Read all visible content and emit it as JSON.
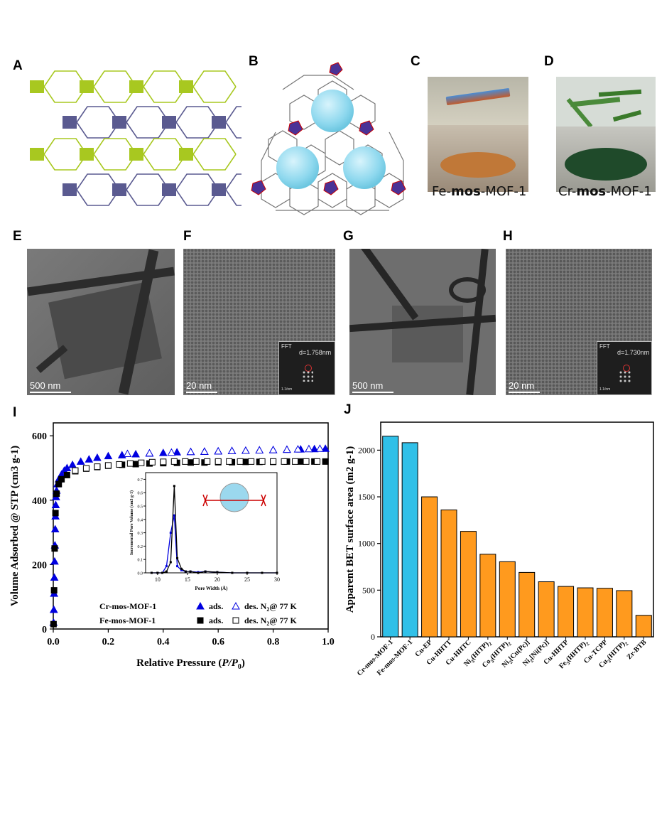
{
  "panels": {
    "A": "A",
    "B": "B",
    "C": "C",
    "D": "D",
    "E": "E",
    "F": "F",
    "G": "G",
    "H": "H",
    "I": "I",
    "J": "J"
  },
  "captions": {
    "fe_prefix": "Fe-",
    "fe_bold": "mos",
    "fe_suffix": "-MOF-1",
    "cr_prefix": "Cr-",
    "cr_bold": "mos",
    "cr_suffix": "-MOF-1"
  },
  "tem": {
    "E_scale": "500 nm",
    "F_scale": "20 nm",
    "F_fft_label": "FFT",
    "F_fft_d": "d=1.758nm",
    "F_fft_scale": "1.1/nm",
    "G_scale": "500 nm",
    "H_scale": "20 nm",
    "H_fft_label": "FFT",
    "H_fft_d": "d=1.730nm",
    "H_fft_scale": "1.1/nm"
  },
  "colors": {
    "green": "#a8c820",
    "purple": "#5a5a90",
    "cyan": "#30c0e8",
    "orange": "#ff9a1e",
    "blue": "#0000e0",
    "black": "#000000"
  },
  "chart_data": [
    {
      "type": "scatter",
      "panel": "I",
      "xlabel_main": "Relative Pressure (",
      "xlabel_italic": "P/P",
      "xlabel_sub": "0",
      "xlabel_end": ")",
      "ylabel": "Volume Adsorbed @ STP (cm3 g-1)",
      "xlim": [
        0,
        1.0
      ],
      "ylim": [
        0,
        640
      ],
      "xticks": [
        "0.0",
        "0.2",
        "0.4",
        "0.6",
        "0.8",
        "1.0"
      ],
      "yticks": [
        "0",
        "200",
        "400",
        "600"
      ],
      "legend": {
        "cr_name": "Cr-mos-MOF-1",
        "fe_name": "Fe-mos-MOF-1",
        "ads": "ads.",
        "des": "des. N",
        "des_sub": "2",
        "des_end": "@ 77 K"
      },
      "series": [
        {
          "name": "Cr-mos-MOF-1 ads.",
          "marker": "filled-triangle",
          "color": "#0000e0",
          "x": [
            0.001,
            0.002,
            0.003,
            0.004,
            0.005,
            0.006,
            0.007,
            0.008,
            0.009,
            0.01,
            0.012,
            0.015,
            0.02,
            0.03,
            0.04,
            0.05,
            0.07,
            0.1,
            0.13,
            0.16,
            0.2,
            0.25,
            0.3,
            0.35,
            0.4,
            0.45,
            0.5,
            0.55,
            0.6,
            0.65,
            0.7,
            0.75,
            0.8,
            0.85,
            0.9,
            0.95,
            0.99
          ],
          "y": [
            20,
            60,
            110,
            160,
            210,
            260,
            310,
            350,
            385,
            410,
            430,
            450,
            465,
            480,
            492,
            500,
            510,
            520,
            527,
            532,
            537,
            540,
            543,
            545,
            547,
            549,
            550,
            551,
            552,
            553,
            554,
            555,
            556,
            557,
            558,
            559,
            560
          ]
        },
        {
          "name": "Cr-mos-MOF-1 des. N2@ 77 K",
          "marker": "open-triangle",
          "color": "#0000e0",
          "x": [
            0.97,
            0.93,
            0.89,
            0.85,
            0.8,
            0.75,
            0.7,
            0.65,
            0.6,
            0.55,
            0.5,
            0.43,
            0.35,
            0.27
          ],
          "y": [
            560,
            559,
            558,
            557,
            556,
            555,
            554,
            553,
            552,
            551,
            550,
            548,
            546,
            544
          ]
        },
        {
          "name": "Fe-mos-MOF-1 ads.",
          "marker": "filled-square",
          "color": "#000000",
          "x": [
            0.001,
            0.003,
            0.005,
            0.008,
            0.012,
            0.02,
            0.03,
            0.05,
            0.08,
            0.12,
            0.16,
            0.2,
            0.25,
            0.3,
            0.35,
            0.4,
            0.45,
            0.5,
            0.55,
            0.6,
            0.65,
            0.7,
            0.75,
            0.8,
            0.85,
            0.9,
            0.95,
            0.99
          ],
          "y": [
            15,
            120,
            250,
            360,
            420,
            450,
            465,
            478,
            490,
            498,
            503,
            507,
            510,
            512,
            514,
            515,
            516,
            517,
            517,
            518,
            518,
            519,
            519,
            519,
            520,
            520,
            520,
            520
          ]
        },
        {
          "name": "Fe-mos-MOF-1 des. N2@ 77 K",
          "marker": "open-square",
          "color": "#000000",
          "x": [
            0.96,
            0.92,
            0.88,
            0.84,
            0.8,
            0.76,
            0.72,
            0.68,
            0.64,
            0.6,
            0.56,
            0.52,
            0.48,
            0.44,
            0.4,
            0.36,
            0.32,
            0.28,
            0.24,
            0.2,
            0.16,
            0.12,
            0.08
          ],
          "y": [
            520,
            520,
            520,
            520,
            520,
            520,
            520,
            520,
            520,
            520,
            520,
            520,
            520,
            520,
            519,
            518,
            516,
            514,
            511,
            508,
            504,
            499,
            492
          ]
        }
      ],
      "inset": {
        "type": "line",
        "xlabel": "Pore Width (Å)",
        "ylabel": "Incremental Pore Volume (cm3 g-1)",
        "xlim": [
          8,
          30
        ],
        "ylim": [
          0,
          0.75
        ],
        "xticks": [
          "10",
          "15",
          "20",
          "25",
          "30"
        ],
        "yticks": [
          "0.0",
          "0.1",
          "0.2",
          "0.3",
          "0.4",
          "0.5",
          "0.6",
          "0.7"
        ],
        "series": [
          {
            "name": "Cr",
            "color": "#0000e0",
            "x": [
              9.0,
              10.0,
              10.8,
              11.5,
              12.2,
              12.8,
              13.3,
              14.0,
              14.7,
              15.5,
              16.8,
              18.0,
              20.0,
              22.5,
              25.0,
              27.5,
              30.0
            ],
            "y": [
              0.0,
              0.0,
              0.0,
              0.05,
              0.3,
              0.43,
              0.05,
              0.02,
              0.01,
              0.01,
              0.005,
              0.01,
              0.005,
              0.0,
              0.0,
              0.0,
              0.0
            ]
          },
          {
            "name": "Fe",
            "color": "#000000",
            "x": [
              9.0,
              10.0,
              10.8,
              11.5,
              12.2,
              12.8,
              13.3,
              14.0,
              14.7,
              15.5,
              16.8,
              18.0,
              20.0,
              22.5,
              25.0,
              27.5,
              30.0
            ],
            "y": [
              0.0,
              0.0,
              0.0,
              0.01,
              0.08,
              0.65,
              0.11,
              0.03,
              0.01,
              0.01,
              0.0,
              0.01,
              0.005,
              0.0,
              0.0,
              0.0,
              0.0
            ]
          }
        ]
      }
    },
    {
      "type": "bar",
      "panel": "J",
      "ylabel": "Apparent BET surface area (m2 g-1)",
      "ylim": [
        0,
        2300
      ],
      "yticks": [
        "0",
        "500",
        "1000",
        "1500",
        "2000"
      ],
      "categories": [
        {
          "label": "Cr-mos-MOF-1",
          "base": "Cr-mos-MOF-1",
          "parts": []
        },
        {
          "label": "Fe-mos-MOF-1",
          "base": "Fe-mos-MOF-1",
          "parts": []
        },
        {
          "label": "Cu-EP",
          "base": "Cu-EP",
          "parts": []
        },
        {
          "label": "Cu-HHTT",
          "base": "Cu-HHTT",
          "parts": []
        },
        {
          "label": "Cu-HHTC",
          "base": "Cu-HHTC",
          "parts": []
        },
        {
          "label": "Ni3(HITP)2",
          "base": "Ni",
          "parts": [
            [
              "3",
              "sub"
            ],
            [
              "(HITP)",
              ""
            ],
            [
              "2",
              "sub"
            ]
          ]
        },
        {
          "label": "Co3(HITP)2",
          "base": "Co",
          "parts": [
            [
              "3",
              "sub"
            ],
            [
              "(HITP)",
              ""
            ],
            [
              "2",
              "sub"
            ]
          ]
        },
        {
          "label": "Ni2[Cu(Pc)]",
          "base": "Ni",
          "parts": [
            [
              "2",
              "sub"
            ],
            [
              "[Cu(Pc)]",
              ""
            ]
          ]
        },
        {
          "label": "Ni2[Ni(Pc)]",
          "base": "Ni",
          "parts": [
            [
              "2",
              "sub"
            ],
            [
              "[Ni(Pc)]",
              ""
            ]
          ]
        },
        {
          "label": "Cu-HHTP",
          "base": "Cu-HHTP",
          "parts": []
        },
        {
          "label": "Fe3(HHTP)2",
          "base": "Fe",
          "parts": [
            [
              "3",
              "sub"
            ],
            [
              "(HHTP)",
              ""
            ],
            [
              "2",
              "sub"
            ]
          ]
        },
        {
          "label": "Cu-TCPP",
          "base": "Cu-TCPP",
          "parts": []
        },
        {
          "label": "Cu3(HITP)2",
          "base": "Cu",
          "parts": [
            [
              "3",
              "sub"
            ],
            [
              "(HITP)",
              ""
            ],
            [
              "2",
              "sub"
            ]
          ]
        },
        {
          "label": "Zr-BTB",
          "base": "Zr-BTB",
          "parts": []
        }
      ],
      "values": [
        2150,
        2080,
        1500,
        1360,
        1130,
        885,
        805,
        690,
        590,
        540,
        525,
        520,
        495,
        230
      ],
      "bar_colors": [
        "#30c0e8",
        "#30c0e8",
        "#ff9a1e",
        "#ff9a1e",
        "#ff9a1e",
        "#ff9a1e",
        "#ff9a1e",
        "#ff9a1e",
        "#ff9a1e",
        "#ff9a1e",
        "#ff9a1e",
        "#ff9a1e",
        "#ff9a1e",
        "#ff9a1e"
      ]
    }
  ]
}
